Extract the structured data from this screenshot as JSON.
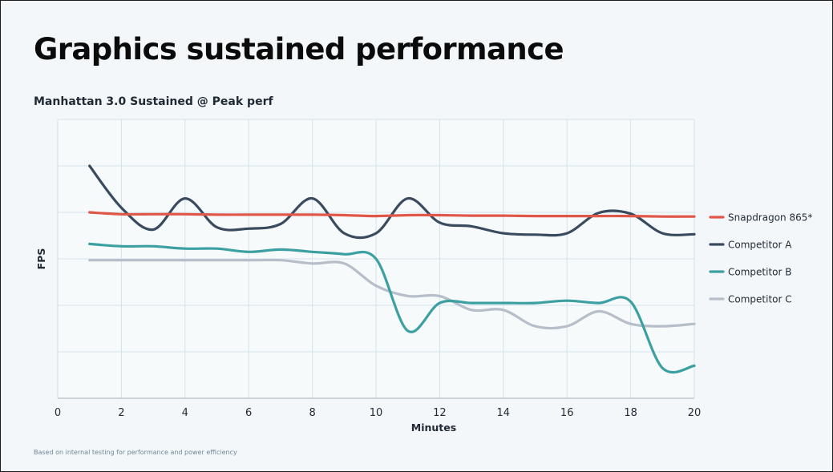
{
  "page": {
    "title": "Graphics sustained performance",
    "subtitle": "Manhattan 3.0 Sustained @ Peak perf",
    "footnote": "Based on internal testing for performance and power efficiency"
  },
  "chart_data": {
    "type": "line",
    "xlabel": "Minutes",
    "ylabel": "FPS",
    "xlim": [
      0,
      20
    ],
    "ylim": [
      0,
      6
    ],
    "x_ticks": [
      0,
      2,
      4,
      6,
      8,
      10,
      12,
      14,
      16,
      18,
      20
    ],
    "y_ticks_labeled": false,
    "grid": true,
    "legend_position": "right",
    "series": [
      {
        "name": "Snapdragon 865*",
        "color": "#e0574a",
        "points": [
          [
            1,
            4.0
          ],
          [
            2,
            3.96
          ],
          [
            3,
            3.96
          ],
          [
            4,
            3.96
          ],
          [
            5,
            3.95
          ],
          [
            6,
            3.95
          ],
          [
            7,
            3.95
          ],
          [
            8,
            3.95
          ],
          [
            9,
            3.94
          ],
          [
            10,
            3.92
          ],
          [
            11,
            3.94
          ],
          [
            12,
            3.94
          ],
          [
            13,
            3.93
          ],
          [
            14,
            3.93
          ],
          [
            15,
            3.92
          ],
          [
            16,
            3.92
          ],
          [
            17,
            3.92
          ],
          [
            18,
            3.92
          ],
          [
            19,
            3.91
          ],
          [
            20,
            3.91
          ]
        ]
      },
      {
        "name": "Competitor A",
        "color": "#3a4b60",
        "points": [
          [
            1,
            5.0
          ],
          [
            2,
            4.1
          ],
          [
            3,
            3.63
          ],
          [
            4,
            4.3
          ],
          [
            5,
            3.68
          ],
          [
            6,
            3.65
          ],
          [
            7,
            3.75
          ],
          [
            8,
            4.3
          ],
          [
            9,
            3.55
          ],
          [
            10,
            3.55
          ],
          [
            11,
            4.3
          ],
          [
            12,
            3.78
          ],
          [
            13,
            3.7
          ],
          [
            14,
            3.55
          ],
          [
            15,
            3.52
          ],
          [
            16,
            3.55
          ],
          [
            17,
            3.99
          ],
          [
            18,
            3.97
          ],
          [
            19,
            3.55
          ],
          [
            20,
            3.53
          ]
        ]
      },
      {
        "name": "Competitor B",
        "color": "#3ca0a3",
        "points": [
          [
            1,
            3.32
          ],
          [
            2,
            3.27
          ],
          [
            3,
            3.27
          ],
          [
            4,
            3.22
          ],
          [
            5,
            3.22
          ],
          [
            6,
            3.15
          ],
          [
            7,
            3.2
          ],
          [
            8,
            3.15
          ],
          [
            9,
            3.1
          ],
          [
            10,
            3.0
          ],
          [
            11,
            1.45
          ],
          [
            12,
            2.05
          ],
          [
            13,
            2.05
          ],
          [
            14,
            2.05
          ],
          [
            15,
            2.05
          ],
          [
            16,
            2.1
          ],
          [
            17,
            2.05
          ],
          [
            18,
            2.08
          ],
          [
            19,
            0.65
          ],
          [
            20,
            0.7
          ]
        ]
      },
      {
        "name": "Competitor C",
        "color": "#b6bec9",
        "points": [
          [
            1,
            2.97
          ],
          [
            2,
            2.97
          ],
          [
            3,
            2.97
          ],
          [
            4,
            2.97
          ],
          [
            5,
            2.97
          ],
          [
            6,
            2.97
          ],
          [
            7,
            2.97
          ],
          [
            8,
            2.9
          ],
          [
            9,
            2.9
          ],
          [
            10,
            2.42
          ],
          [
            11,
            2.2
          ],
          [
            12,
            2.2
          ],
          [
            13,
            1.9
          ],
          [
            14,
            1.9
          ],
          [
            15,
            1.55
          ],
          [
            16,
            1.55
          ],
          [
            17,
            1.87
          ],
          [
            18,
            1.6
          ],
          [
            19,
            1.55
          ],
          [
            20,
            1.6
          ]
        ]
      }
    ]
  }
}
